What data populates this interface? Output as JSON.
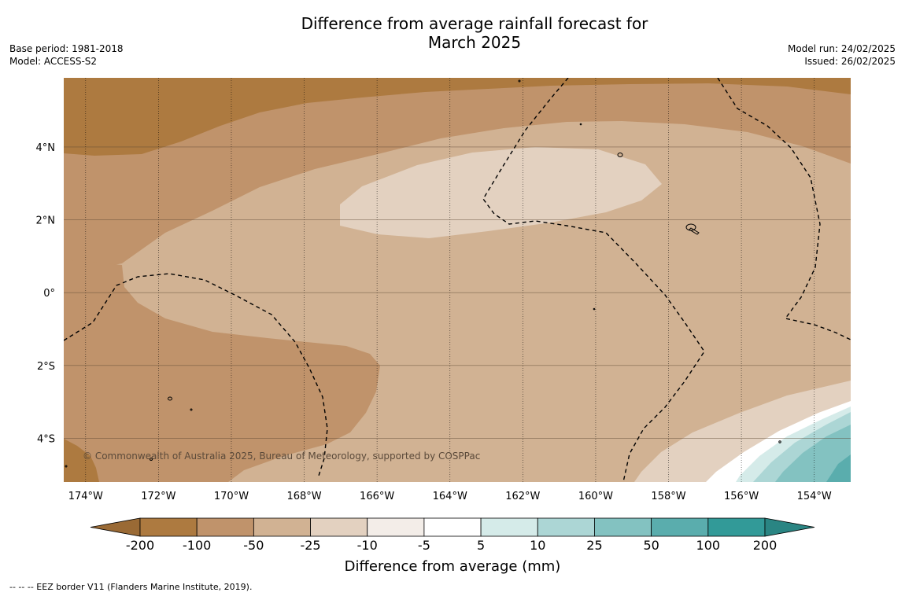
{
  "title_line1": "Difference from average rainfall forecast for",
  "title_line2": "March 2025",
  "base_period": "Base period: 1981-2018",
  "model": "Model: ACCESS-S2",
  "model_run": "Model run: 24/02/2025",
  "issued": "Issued: 26/02/2025",
  "copyright": "© Commonwealth of Australia 2025, Bureau of Meteorology, supported by COSPPac",
  "footnote": "--  --  -- EEZ border V11 (Flanders Marine Institute, 2019).",
  "map": {
    "lon_range": [
      -174.6,
      -153.0
    ],
    "lat_range": [
      -5.2,
      5.9
    ],
    "lon_ticks": [
      "174°W",
      "172°W",
      "170°W",
      "168°W",
      "166°W",
      "164°W",
      "162°W",
      "160°W",
      "158°W",
      "156°W",
      "154°W"
    ],
    "lon_tick_values": [
      -174,
      -172,
      -170,
      -168,
      -166,
      -164,
      -162,
      -160,
      -158,
      -156,
      -154
    ],
    "lat_ticks": [
      "4°N",
      "2°N",
      "0°",
      "2°S",
      "4°S"
    ],
    "lat_tick_values": [
      4,
      2,
      0,
      -2,
      -4
    ],
    "regions": [
      {
        "category": "-200 to -100",
        "color": "#ad7a40"
      },
      {
        "category": "-100 to -50",
        "color": "#c0936b"
      },
      {
        "category": "-50 to -25",
        "color": "#d1b293"
      },
      {
        "category": "-25 to -10",
        "color": "#e3d1c0"
      },
      {
        "category": "-5 to 5",
        "color": "#ffffff"
      },
      {
        "category": "5 to 10",
        "color": "#d5ebe9"
      },
      {
        "category": "10 to 25",
        "color": "#acd6d5"
      },
      {
        "category": "25 to 50",
        "color": "#83c2c1"
      },
      {
        "category": "50 to 100",
        "color": "#5aadad"
      }
    ]
  },
  "colorbar": {
    "title": "Difference from average (mm)",
    "labels": [
      "-200",
      "-100",
      "-50",
      "-25",
      "-10",
      "-5",
      "5",
      "10",
      "25",
      "50",
      "100",
      "200"
    ],
    "colors": [
      "#ad7a40",
      "#c0936b",
      "#d1b293",
      "#e3d1c0",
      "#f3ede8",
      "#ffffff",
      "#d5ebe9",
      "#acd6d5",
      "#83c2c1",
      "#5aadad",
      "#329a98"
    ],
    "extend_low_color": "#9a6a35",
    "extend_high_color": "#2a8583"
  }
}
